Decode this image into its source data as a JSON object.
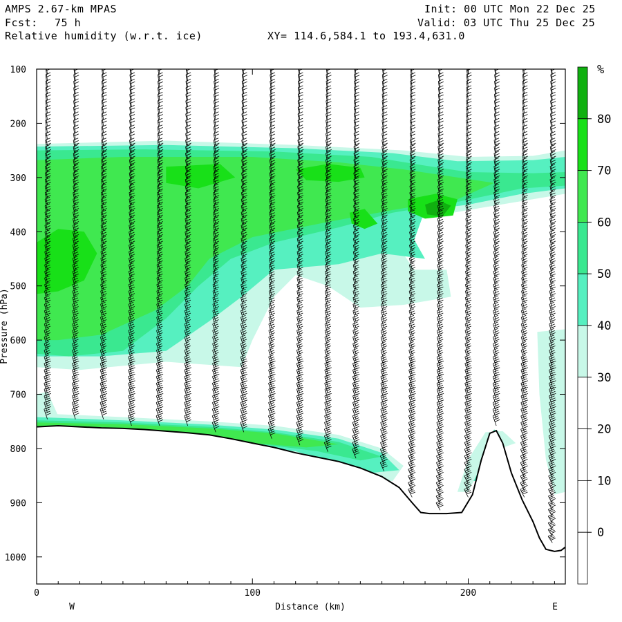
{
  "header": {
    "model": "AMPS 2.67-km MPAS",
    "fcst_label": "Fcst:",
    "fcst_value": "75 h",
    "field": "Relative humidity (w.r.t. ice)",
    "xy": "XY= 114.6,584.1 to 193.4,631.0",
    "init": "Init: 00 UTC Mon 22 Dec 25",
    "valid": "Valid: 03 UTC Thu 25 Dec 25"
  },
  "chart_data": {
    "type": "cross-section",
    "title": "Relative humidity (w.r.t. ice)",
    "xlabel": "Distance (km)",
    "ylabel": "Pressure (hPa)",
    "xlim": [
      0,
      245
    ],
    "ylim": [
      1050,
      100
    ],
    "x_ticks": [
      0,
      100,
      200
    ],
    "y_ticks": [
      100,
      200,
      300,
      400,
      500,
      600,
      700,
      800,
      900,
      1000
    ],
    "x_end_labels": {
      "left": "W",
      "right": "E"
    },
    "colorbar": {
      "unit": "%",
      "levels": [
        0,
        10,
        20,
        30,
        40,
        50,
        60,
        70,
        80
      ],
      "bins": [
        {
          "lo": 30,
          "hi": 40,
          "color": "#c8f8e8"
        },
        {
          "lo": 40,
          "hi": 50,
          "color": "#56f0c0"
        },
        {
          "lo": 50,
          "hi": 60,
          "color": "#3ae890"
        },
        {
          "lo": 60,
          "hi": 70,
          "color": "#40e850"
        },
        {
          "lo": 70,
          "hi": 80,
          "color": "#18e018"
        },
        {
          "lo": 80,
          "hi": 100,
          "color": "#10b010"
        }
      ]
    },
    "terrain_profile": [
      [
        0,
        760
      ],
      [
        10,
        758
      ],
      [
        20,
        760
      ],
      [
        30,
        762
      ],
      [
        40,
        763
      ],
      [
        50,
        765
      ],
      [
        60,
        768
      ],
      [
        70,
        771
      ],
      [
        80,
        775
      ],
      [
        90,
        782
      ],
      [
        100,
        790
      ],
      [
        110,
        798
      ],
      [
        120,
        808
      ],
      [
        130,
        816
      ],
      [
        140,
        824
      ],
      [
        150,
        836
      ],
      [
        160,
        852
      ],
      [
        168,
        872
      ],
      [
        174,
        900
      ],
      [
        178,
        918
      ],
      [
        182,
        920
      ],
      [
        190,
        920
      ],
      [
        197,
        918
      ],
      [
        202,
        885
      ],
      [
        206,
        822
      ],
      [
        210,
        772
      ],
      [
        213,
        767
      ],
      [
        216,
        790
      ],
      [
        220,
        845
      ],
      [
        225,
        895
      ],
      [
        230,
        935
      ],
      [
        233,
        965
      ],
      [
        236,
        986
      ],
      [
        240,
        990
      ],
      [
        243,
        988
      ],
      [
        245,
        982
      ]
    ],
    "rh_regions": [
      {
        "level": 30,
        "poly": [
          [
            0,
            238
          ],
          [
            60,
            232
          ],
          [
            120,
            240
          ],
          [
            170,
            250
          ],
          [
            200,
            262
          ],
          [
            230,
            260
          ],
          [
            245,
            250
          ],
          [
            245,
            330
          ],
          [
            230,
            340
          ],
          [
            200,
            360
          ],
          [
            175,
            378
          ],
          [
            168,
            430
          ],
          [
            175,
            470
          ],
          [
            190,
            470
          ],
          [
            192,
            520
          ],
          [
            170,
            535
          ],
          [
            150,
            540
          ],
          [
            135,
            500
          ],
          [
            120,
            480
          ],
          [
            110,
            520
          ],
          [
            105,
            560
          ],
          [
            100,
            600
          ],
          [
            95,
            650
          ],
          [
            60,
            640
          ],
          [
            20,
            655
          ],
          [
            0,
            650
          ]
        ]
      },
      {
        "level": 30,
        "poly": [
          [
            0,
            700
          ],
          [
            5,
            695
          ],
          [
            10,
            740
          ],
          [
            0,
            745
          ]
        ]
      },
      {
        "level": 30,
        "poly": [
          [
            232,
            585
          ],
          [
            245,
            580
          ],
          [
            245,
            880
          ],
          [
            240,
            885
          ],
          [
            236,
            820
          ],
          [
            233,
            700
          ]
        ]
      },
      {
        "level": 40,
        "poly": [
          [
            0,
            243
          ],
          [
            60,
            240
          ],
          [
            120,
            246
          ],
          [
            165,
            255
          ],
          [
            195,
            270
          ],
          [
            230,
            268
          ],
          [
            245,
            262
          ],
          [
            245,
            320
          ],
          [
            225,
            330
          ],
          [
            200,
            350
          ],
          [
            180,
            360
          ],
          [
            175,
            415
          ],
          [
            180,
            450
          ],
          [
            160,
            440
          ],
          [
            140,
            460
          ],
          [
            110,
            470
          ],
          [
            95,
            520
          ],
          [
            80,
            565
          ],
          [
            60,
            620
          ],
          [
            30,
            630
          ],
          [
            0,
            630
          ]
        ]
      },
      {
        "level": 50,
        "poly": [
          [
            0,
            250
          ],
          [
            50,
            248
          ],
          [
            110,
            252
          ],
          [
            155,
            262
          ],
          [
            180,
            278
          ],
          [
            200,
            290
          ],
          [
            230,
            292
          ],
          [
            245,
            290
          ],
          [
            245,
            315
          ],
          [
            225,
            320
          ],
          [
            195,
            345
          ],
          [
            165,
            365
          ],
          [
            140,
            392
          ],
          [
            110,
            420
          ],
          [
            90,
            450
          ],
          [
            75,
            500
          ],
          [
            60,
            560
          ],
          [
            40,
            620
          ],
          [
            15,
            630
          ],
          [
            0,
            625
          ]
        ]
      },
      {
        "level": 60,
        "poly": [
          [
            0,
            268
          ],
          [
            40,
            262
          ],
          [
            100,
            262
          ],
          [
            140,
            272
          ],
          [
            170,
            285
          ],
          [
            195,
            300
          ],
          [
            212,
            310
          ],
          [
            195,
            340
          ],
          [
            165,
            360
          ],
          [
            135,
            382
          ],
          [
            100,
            410
          ],
          [
            80,
            450
          ],
          [
            70,
            500
          ],
          [
            55,
            545
          ],
          [
            30,
            590
          ],
          [
            10,
            600
          ],
          [
            0,
            600
          ]
        ]
      },
      {
        "level": 70,
        "poly": [
          [
            0,
            420
          ],
          [
            10,
            395
          ],
          [
            22,
            400
          ],
          [
            28,
            440
          ],
          [
            22,
            490
          ],
          [
            10,
            510
          ],
          [
            0,
            515
          ]
        ]
      },
      {
        "level": 70,
        "poly": [
          [
            60,
            280
          ],
          [
            85,
            275
          ],
          [
            92,
            300
          ],
          [
            75,
            320
          ],
          [
            60,
            310
          ]
        ]
      },
      {
        "level": 70,
        "poly": [
          [
            120,
            285
          ],
          [
            135,
            275
          ],
          [
            150,
            282
          ],
          [
            152,
            300
          ],
          [
            140,
            308
          ],
          [
            125,
            305
          ]
        ]
      },
      {
        "level": 70,
        "poly": [
          [
            145,
            365
          ],
          [
            152,
            358
          ],
          [
            158,
            385
          ],
          [
            152,
            395
          ],
          [
            146,
            385
          ]
        ]
      },
      {
        "level": 70,
        "poly": [
          [
            172,
            340
          ],
          [
            185,
            330
          ],
          [
            195,
            340
          ],
          [
            193,
            370
          ],
          [
            180,
            376
          ],
          [
            172,
            362
          ]
        ]
      },
      {
        "level": 80,
        "poly": [
          [
            180,
            350
          ],
          [
            186,
            342
          ],
          [
            192,
            352
          ],
          [
            188,
            372
          ],
          [
            181,
            368
          ]
        ]
      },
      {
        "level": 30,
        "poly": [
          [
            0,
            735
          ],
          [
            40,
            742
          ],
          [
            80,
            750
          ],
          [
            110,
            758
          ],
          [
            140,
            775
          ],
          [
            160,
            800
          ],
          [
            170,
            832
          ],
          [
            165,
            860
          ],
          [
            150,
            860
          ],
          [
            130,
            840
          ],
          [
            100,
            810
          ],
          [
            60,
            790
          ],
          [
            20,
            780
          ],
          [
            0,
            775
          ]
        ]
      },
      {
        "level": 40,
        "poly": [
          [
            0,
            742
          ],
          [
            40,
            748
          ],
          [
            80,
            756
          ],
          [
            110,
            765
          ],
          [
            140,
            782
          ],
          [
            160,
            808
          ],
          [
            168,
            840
          ],
          [
            155,
            845
          ],
          [
            140,
            830
          ],
          [
            120,
            805
          ],
          [
            90,
            790
          ],
          [
            50,
            780
          ],
          [
            20,
            775
          ],
          [
            0,
            772
          ]
        ]
      },
      {
        "level": 50,
        "poly": [
          [
            0,
            748
          ],
          [
            40,
            752
          ],
          [
            80,
            760
          ],
          [
            110,
            770
          ],
          [
            140,
            788
          ],
          [
            160,
            815
          ],
          [
            150,
            822
          ],
          [
            130,
            805
          ],
          [
            100,
            790
          ],
          [
            60,
            780
          ],
          [
            20,
            770
          ],
          [
            0,
            768
          ]
        ]
      },
      {
        "level": 60,
        "poly": [
          [
            0,
            752
          ],
          [
            40,
            755
          ],
          [
            80,
            763
          ],
          [
            110,
            772
          ],
          [
            140,
            792
          ],
          [
            125,
            798
          ],
          [
            100,
            790
          ],
          [
            60,
            775
          ],
          [
            20,
            765
          ],
          [
            0,
            765
          ]
        ]
      },
      {
        "level": 40,
        "poly": [
          [
            202,
            860
          ],
          [
            206,
            800
          ],
          [
            212,
            765
          ],
          [
            218,
            775
          ],
          [
            215,
            790
          ],
          [
            208,
            820
          ],
          [
            205,
            860
          ]
        ]
      },
      {
        "level": 30,
        "poly": [
          [
            195,
            880
          ],
          [
            200,
            820
          ],
          [
            208,
            770
          ],
          [
            216,
            768
          ],
          [
            222,
            790
          ],
          [
            215,
            800
          ],
          [
            205,
            840
          ],
          [
            200,
            880
          ]
        ]
      }
    ]
  }
}
